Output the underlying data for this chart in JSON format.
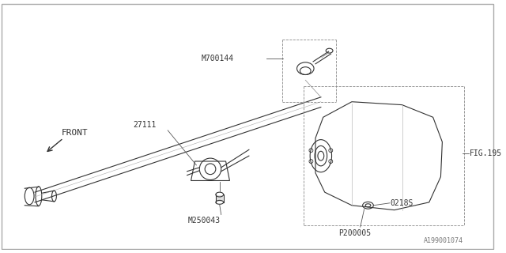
{
  "bg_color": "#ffffff",
  "line_color": "#333333",
  "border_color": "#aaaaaa",
  "diagram_id": "A199001074",
  "labels": {
    "front": "FRONT",
    "part_27111": "27111",
    "part_M250043": "M250043",
    "part_M700144": "M700144",
    "part_FIG195": "FIG.195",
    "part_0218S": "0218S",
    "part_P200005": "P200005"
  },
  "font_size": 7,
  "lw": 0.8
}
